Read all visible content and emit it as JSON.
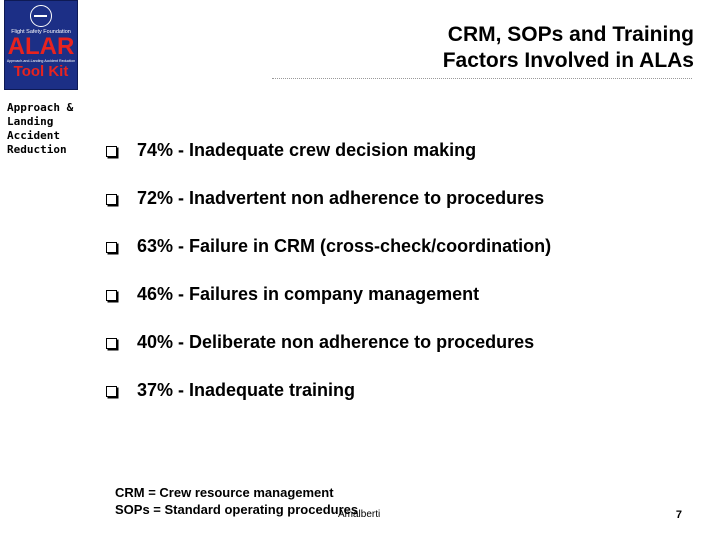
{
  "logo": {
    "org": "Flight Safety Foundation",
    "name": "ALAR",
    "subtitle": "Approach-and-Landing Accident Reduction",
    "toolkit": "Tool Kit"
  },
  "sidebar_label": "Approach &\nLanding\nAccident\nReduction",
  "title": {
    "line1": "CRM, SOPs and Training",
    "line2": "Factors Involved in ALAs"
  },
  "bullets": [
    {
      "text": "74% - Inadequate crew decision making"
    },
    {
      "text": "72% - Inadvertent non adherence to procedures"
    },
    {
      "text": "63% - Failure in CRM (cross-check/coordination)"
    },
    {
      "text": "46% - Failures in company management"
    },
    {
      "text": "40% - Deliberate non adherence to procedures"
    },
    {
      "text": "37% - Inadequate training"
    }
  ],
  "legend": {
    "line1": "CRM = Crew resource management",
    "line2": "SOPs = Standard operating procedures"
  },
  "footer": {
    "author": "Amalberti",
    "page_number": "7"
  },
  "colors": {
    "logo_background": "#1c2f86",
    "logo_accent": "#e8231f"
  }
}
